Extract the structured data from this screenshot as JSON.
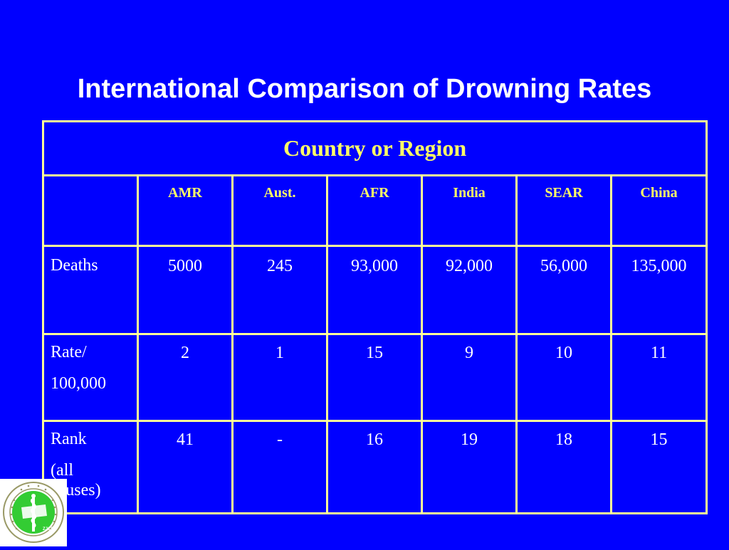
{
  "slide": {
    "title": "International Comparison of Drowning Rates"
  },
  "table": {
    "header": "Country or Region",
    "columns": [
      "AMR",
      "Aust.",
      "AFR",
      "India",
      "SEAR",
      "China"
    ],
    "rows": [
      {
        "label_lines": [
          "Deaths"
        ],
        "values": [
          "5000",
          "245",
          "93,000",
          "92,000",
          "56,000",
          "135,000"
        ]
      },
      {
        "label_lines": [
          "Rate/",
          "100,000"
        ],
        "values": [
          "2",
          "1",
          "15",
          "9",
          "10",
          "11"
        ]
      },
      {
        "label_lines": [
          "Rank",
          "(all",
          "causes)"
        ],
        "values": [
          "41",
          "-",
          "16",
          "19",
          "18",
          "15"
        ]
      }
    ]
  },
  "logo": {
    "icon": "rod-of-asclepius-seal-icon",
    "text": "ZJCDC",
    "colors": {
      "green": "#33cc33",
      "ring": "#999966"
    }
  }
}
